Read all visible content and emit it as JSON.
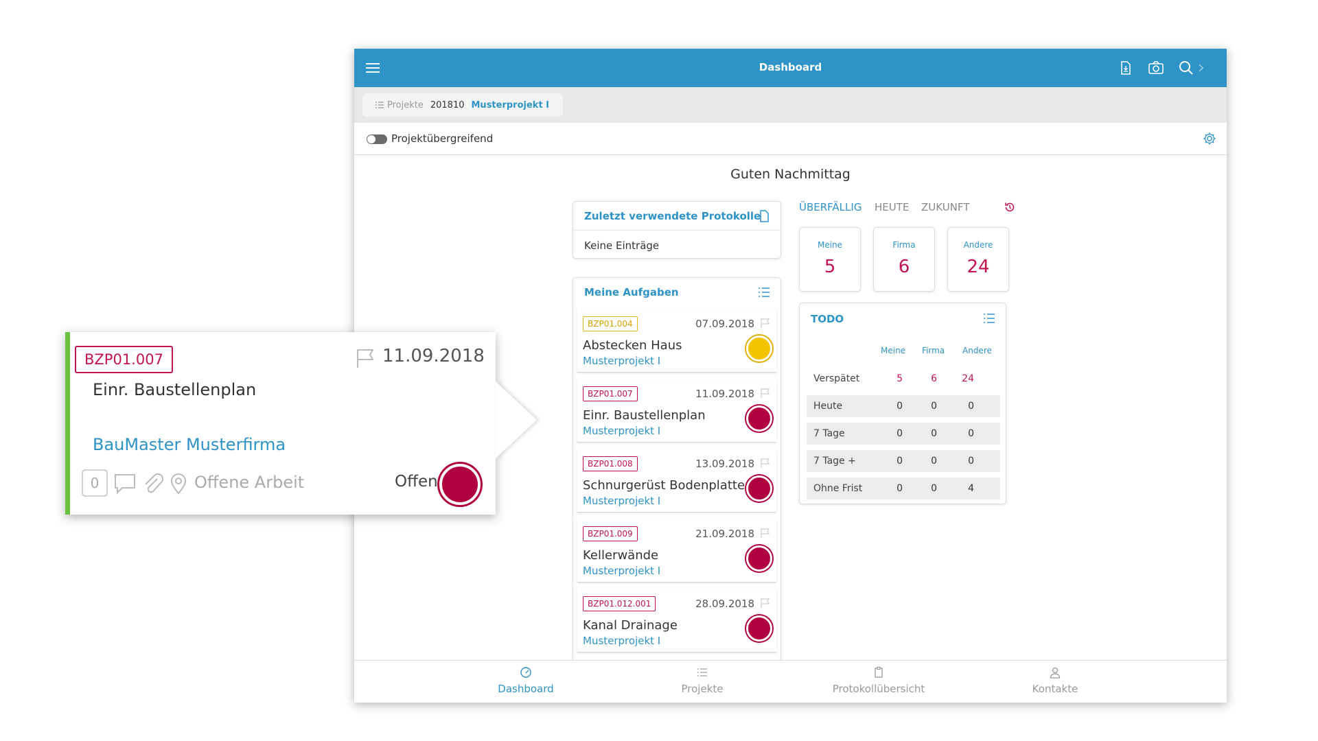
{
  "header": {
    "title": "Dashboard",
    "menu_icon": "menu-icon",
    "icons": [
      "pdf-icon",
      "camera-icon",
      "search-icon"
    ]
  },
  "project": {
    "label": "Projekte",
    "number": "201810",
    "name": "Musterprojekt I"
  },
  "toggle": {
    "label": "Projektübergreifend",
    "checked": false
  },
  "greeting": "Guten Nachmittag",
  "recent": {
    "title": "Zuletzt verwendete Protokolle",
    "empty": "Keine Einträge"
  },
  "tasks": {
    "title": "Meine Aufgaben",
    "items": [
      {
        "code": "BZP01.004",
        "date": "07.09.2018",
        "title": "Abstecken Haus",
        "project": "Musterprojekt I",
        "status": "partial"
      },
      {
        "code": "BZP01.007",
        "date": "11.09.2018",
        "title": "Einr. Baustellenplan",
        "project": "Musterprojekt I",
        "status": "open"
      },
      {
        "code": "BZP01.008",
        "date": "13.09.2018",
        "title": "Schnurgerüst Bodenplatte",
        "project": "Musterprojekt I",
        "status": "open"
      },
      {
        "code": "BZP01.009",
        "date": "21.09.2018",
        "title": "Kellerwände",
        "project": "Musterprojekt I",
        "status": "open"
      },
      {
        "code": "BZP01.012.001",
        "date": "28.09.2018",
        "title": "Kanal Drainage",
        "project": "Musterprojekt I",
        "status": "open"
      }
    ]
  },
  "timetabs": {
    "overdue": "ÜBERFÄLLIG",
    "today": "HEUTE",
    "future": "ZUKUNFT"
  },
  "stats": [
    {
      "label": "Meine",
      "value": "5"
    },
    {
      "label": "Firma",
      "value": "6"
    },
    {
      "label": "Andere",
      "value": "24"
    }
  ],
  "todo": {
    "title": "TODO",
    "columns": [
      "Meine",
      "Firma",
      "Andere"
    ],
    "rows": [
      {
        "label": "Verspätet",
        "values": [
          "5",
          "6",
          "24"
        ]
      },
      {
        "label": "Heute",
        "values": [
          "0",
          "0",
          "0"
        ]
      },
      {
        "label": "7 Tage",
        "values": [
          "0",
          "0",
          "0"
        ]
      },
      {
        "label": "7 Tage +",
        "values": [
          "0",
          "0",
          "0"
        ]
      },
      {
        "label": "Ohne Frist",
        "values": [
          "0",
          "0",
          "4"
        ]
      }
    ]
  },
  "nav": {
    "dashboard": "Dashboard",
    "projects": "Projekte",
    "protocols": "Protokollübersicht",
    "contacts": "Kontakte"
  },
  "callout": {
    "code": "BZP01.007",
    "date": "11.09.2018",
    "title": "Einr. Baustellenplan",
    "company": "BauMaster Musterfirma",
    "count": "0",
    "work": "Offene Arbeit",
    "status": "Offen"
  },
  "colors": {
    "primary": "#2e93c6",
    "accent": "#c1154a",
    "status_open": "#b0003f",
    "status_partial": "#f4c400",
    "green": "#6cc13e"
  }
}
